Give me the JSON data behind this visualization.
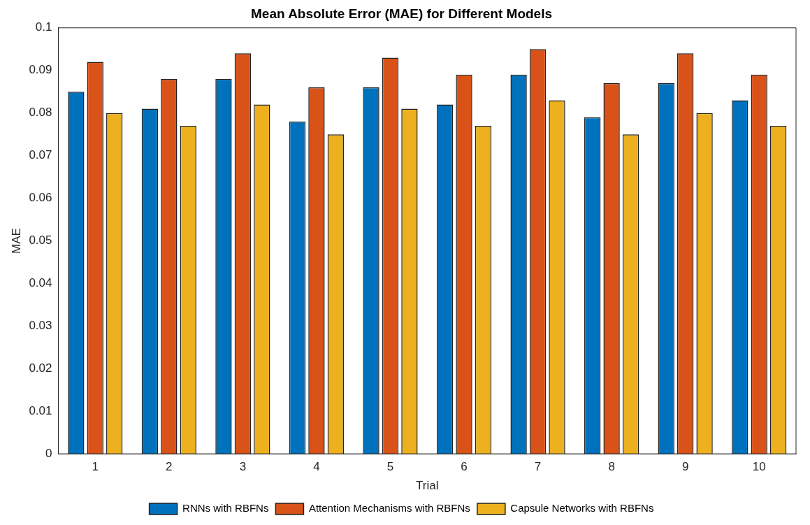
{
  "chart_data": {
    "type": "bar",
    "title": "Mean Absolute Error (MAE) for Different Models",
    "xlabel": "Trial",
    "ylabel": "MAE",
    "categories": [
      "1",
      "2",
      "3",
      "4",
      "5",
      "6",
      "7",
      "8",
      "9",
      "10"
    ],
    "series": [
      {
        "name": "RNNs with RBFNs",
        "color": "#0072bd",
        "values": [
          0.085,
          0.081,
          0.088,
          0.078,
          0.086,
          0.082,
          0.089,
          0.079,
          0.087,
          0.083
        ]
      },
      {
        "name": "Attention Mechanisms with RBFNs",
        "color": "#d95319",
        "values": [
          0.092,
          0.088,
          0.094,
          0.086,
          0.093,
          0.089,
          0.095,
          0.087,
          0.094,
          0.089
        ]
      },
      {
        "name": "Capsule Networks with RBFNs",
        "color": "#edb120",
        "values": [
          0.08,
          0.077,
          0.082,
          0.075,
          0.081,
          0.077,
          0.083,
          0.075,
          0.08,
          0.077
        ]
      }
    ],
    "ylim": [
      0,
      0.1
    ],
    "yticks": [
      0,
      0.01,
      0.02,
      0.03,
      0.04,
      0.05,
      0.06,
      0.07,
      0.08,
      0.09,
      0.1
    ],
    "grid": false,
    "legend": "bottom"
  }
}
